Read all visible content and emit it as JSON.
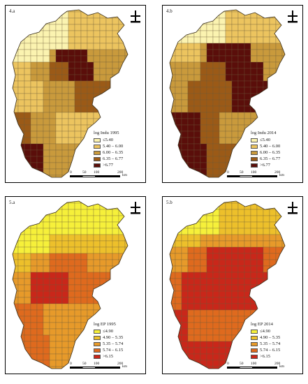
{
  "figure": {
    "panels": [
      {
        "id": "4.a",
        "label": "4.a",
        "legend_title": "log Indu 1995",
        "classes": [
          "≤5.40",
          "5.40 – 6.00",
          "6.00 – 6.35",
          "6.35 – 6.77",
          ">6.77"
        ],
        "colors": [
          "#fbf3b0",
          "#ecc45f",
          "#c99a3c",
          "#9b5a17",
          "#5a0e0a"
        ],
        "scale_ticks": [
          "0",
          "50",
          "100",
          "200"
        ],
        "scale_unit": "km"
      },
      {
        "id": "4.b",
        "label": "4.b",
        "legend_title": "log Indu 2014",
        "classes": [
          "≤5.40",
          "5.40 – 6.00",
          "6.00 – 6.35",
          "6.35 – 6.77",
          ">6.77"
        ],
        "colors": [
          "#fbf3b0",
          "#ecc45f",
          "#c99a3c",
          "#9b5a17",
          "#5a0e0a"
        ],
        "scale_ticks": [
          "0",
          "50",
          "100",
          "200"
        ],
        "scale_unit": "km"
      },
      {
        "id": "5.a",
        "label": "5.a",
        "legend_title": "log EP 1995",
        "classes": [
          "≤4.90",
          "4.90 – 5.35",
          "5.35 – 5.74",
          "5.74 – 6.15",
          ">6.15"
        ],
        "colors": [
          "#f6f03a",
          "#edc02b",
          "#e79a2a",
          "#df6a1e",
          "#c9271a"
        ],
        "scale_ticks": [
          "0",
          "50",
          "100",
          "200"
        ],
        "scale_unit": "km"
      },
      {
        "id": "5.b",
        "label": "5.b",
        "legend_title": "log EP 2014",
        "classes": [
          "≤4.90",
          "4.90 – 5.35",
          "5.35 – 5.74",
          "5.74 – 6.15",
          ">6.15"
        ],
        "colors": [
          "#f6f03a",
          "#edc02b",
          "#e79a2a",
          "#df6a1e",
          "#c9271a"
        ],
        "scale_ticks": [
          "0",
          "50",
          "100",
          "200"
        ],
        "scale_unit": "km"
      }
    ]
  }
}
